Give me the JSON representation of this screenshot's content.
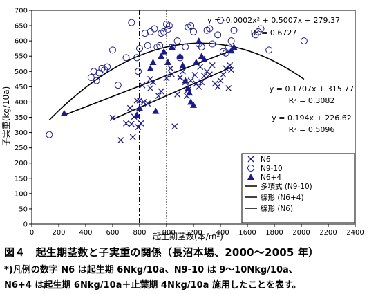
{
  "chart_data": {
    "type": "scatter",
    "xlabel": "起生期茎数(本/m²)",
    "ylabel": "子実重(kg/10a)",
    "xlim": [
      0,
      2400
    ],
    "ylim": [
      0,
      700
    ],
    "x_ticks": [
      "0",
      "200",
      "400",
      "600",
      "800",
      "1000",
      "1200",
      "1400",
      "1600",
      "1800",
      "2000",
      "2200",
      "2400"
    ],
    "y_ticks": [
      "0",
      "50",
      "100",
      "150",
      "200",
      "250",
      "300",
      "350",
      "400",
      "450",
      "500",
      "550",
      "600",
      "650",
      "700"
    ],
    "grid": false,
    "legend_position": "right",
    "series": [
      {
        "name": "N6",
        "marker": "cross",
        "color": "#1a1a8c",
        "points": [
          [
            600,
            348
          ],
          [
            660,
            275
          ],
          [
            700,
            330
          ],
          [
            740,
            328
          ],
          [
            730,
            380
          ],
          [
            750,
            285
          ],
          [
            760,
            352
          ],
          [
            780,
            405
          ],
          [
            790,
            318
          ],
          [
            810,
            330
          ],
          [
            800,
            405
          ],
          [
            830,
            400
          ],
          [
            820,
            455
          ],
          [
            860,
            395
          ],
          [
            880,
            445
          ],
          [
            900,
            465
          ],
          [
            880,
            475
          ],
          [
            940,
            420
          ],
          [
            960,
            435
          ],
          [
            1000,
            478
          ],
          [
            1030,
            510
          ],
          [
            1040,
            490
          ],
          [
            1060,
            320
          ],
          [
            1080,
            425
          ],
          [
            1100,
            480
          ],
          [
            1120,
            500
          ],
          [
            1140,
            465
          ],
          [
            1160,
            440
          ],
          [
            1150,
            420
          ],
          [
            1180,
            470
          ],
          [
            1210,
            488
          ],
          [
            1220,
            460
          ],
          [
            1240,
            450
          ],
          [
            1250,
            515
          ],
          [
            1260,
            465
          ],
          [
            1280,
            485
          ],
          [
            1300,
            500
          ],
          [
            1320,
            490
          ],
          [
            1340,
            520
          ],
          [
            1360,
            460
          ],
          [
            1380,
            450
          ],
          [
            1400,
            470
          ],
          [
            1420,
            490
          ],
          [
            1440,
            510
          ],
          [
            1460,
            445
          ],
          [
            1470,
            520
          ],
          [
            1480,
            505
          ]
        ]
      },
      {
        "name": "N9-10",
        "marker": "open-circle",
        "color": "#1a1a8c",
        "points": [
          [
            130,
            293
          ],
          [
            440,
            480
          ],
          [
            460,
            500
          ],
          [
            480,
            470
          ],
          [
            500,
            495
          ],
          [
            520,
            510
          ],
          [
            540,
            505
          ],
          [
            560,
            515
          ],
          [
            600,
            570
          ],
          [
            640,
            455
          ],
          [
            700,
            545
          ],
          [
            740,
            660
          ],
          [
            780,
            545
          ],
          [
            790,
            500
          ],
          [
            800,
            575
          ],
          [
            840,
            625
          ],
          [
            860,
            585
          ],
          [
            880,
            630
          ],
          [
            910,
            640
          ],
          [
            930,
            580
          ],
          [
            950,
            585
          ],
          [
            960,
            625
          ],
          [
            980,
            630
          ],
          [
            1000,
            655
          ],
          [
            1010,
            638
          ],
          [
            1020,
            650
          ],
          [
            1040,
            580
          ],
          [
            1080,
            600
          ],
          [
            1100,
            545
          ],
          [
            1140,
            580
          ],
          [
            1160,
            645
          ],
          [
            1180,
            650
          ],
          [
            1200,
            630
          ],
          [
            1240,
            590
          ],
          [
            1260,
            580
          ],
          [
            1300,
            635
          ],
          [
            1320,
            640
          ],
          [
            1340,
            590
          ],
          [
            1380,
            620
          ],
          [
            1400,
            668
          ],
          [
            1420,
            565
          ],
          [
            1440,
            560
          ],
          [
            1460,
            580
          ],
          [
            1480,
            600
          ],
          [
            1500,
            635
          ],
          [
            1660,
            620
          ],
          [
            1680,
            630
          ],
          [
            1700,
            640
          ],
          [
            1760,
            570
          ],
          [
            2020,
            600
          ]
        ]
      },
      {
        "name": "N6+4",
        "marker": "filled-triangle",
        "color": "#1a1a8c",
        "points": [
          [
            240,
            363
          ],
          [
            780,
            358
          ],
          [
            800,
            380
          ],
          [
            880,
            510
          ],
          [
            900,
            530
          ],
          [
            920,
            370
          ],
          [
            960,
            550
          ],
          [
            980,
            565
          ],
          [
            1010,
            530
          ],
          [
            1040,
            580
          ],
          [
            1100,
            550
          ],
          [
            1120,
            520
          ],
          [
            1140,
            470
          ],
          [
            1160,
            445
          ],
          [
            1170,
            430
          ],
          [
            1180,
            400
          ],
          [
            1200,
            390
          ],
          [
            1220,
            530
          ],
          [
            1240,
            600
          ],
          [
            1260,
            550
          ],
          [
            1280,
            540
          ],
          [
            1480,
            568
          ],
          [
            1500,
            580
          ]
        ]
      }
    ],
    "trendlines": [
      {
        "name": "多項式 (N9-10)",
        "type": "polynomial",
        "coefficients": [
          -0.0002,
          0.5007,
          279.37
        ],
        "x_range": [
          130,
          2020
        ],
        "equation": "y = -0.0002x² + 0.5007x + 279.37",
        "r2": "R² = 0.6727"
      },
      {
        "name": "線形 (N6+4)",
        "type": "linear",
        "slope": 0.1707,
        "intercept": 315.77,
        "x_range": [
          240,
          1500
        ],
        "equation": "y = 0.1707x + 315.77",
        "r2": "R² = 0.3082"
      },
      {
        "name": "線形 (N6)",
        "type": "linear",
        "slope": 0.194,
        "intercept": 226.62,
        "x_range": [
          600,
          1480
        ],
        "equation": "y = 0.194x + 226.62",
        "r2": "R² = 0.5096"
      }
    ],
    "vertical_lines": [
      {
        "x": 800,
        "style": "dash-dot"
      },
      {
        "x": 1000,
        "style": "dotted"
      },
      {
        "x": 1500,
        "style": "dotted"
      }
    ]
  },
  "caption": {
    "line1": "図４　起生期茎数と子実重の関係（長沼本場、2000～2005 年）",
    "line2": "*)凡例の数字 N6 は起生期 6Nkg/10a、N9-10 は 9～10Nkg/10a、",
    "line3": "N6+4 は起生期 6Nkg/10a＋止葉期 4Nkg/10a 施用したことを表す。"
  }
}
